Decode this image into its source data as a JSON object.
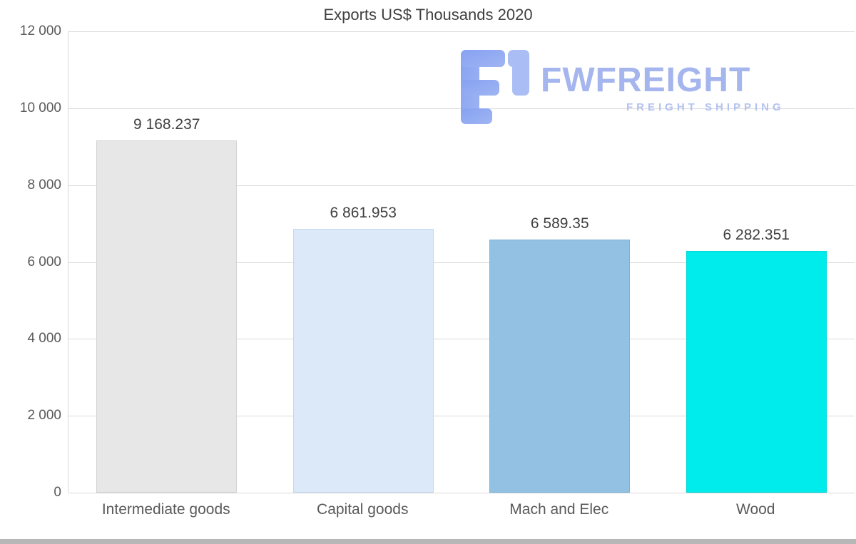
{
  "title": "Exports US$ Thousands 2020",
  "watermark": {
    "name": "FWFREIGHT",
    "tagline": "FREIGHT SHIPPING"
  },
  "chart_data": {
    "type": "bar",
    "title": "Exports US$ Thousands 2020",
    "categories": [
      "Intermediate goods",
      "Capital goods",
      "Mach and Elec",
      "Wood"
    ],
    "values": [
      9168.237,
      6861.953,
      6589.35,
      6282.351
    ],
    "value_labels": [
      "9 168.237",
      "6 861.953",
      "6 589.35",
      "6 282.351"
    ],
    "bar_colors": [
      "#e7e7e7",
      "#dbe9f9",
      "#93c1e3",
      "#00ecec"
    ],
    "bar_border_colors": [
      "#d2d2d2",
      "#c3d9f0",
      "#7eb3da",
      "#00d8d8"
    ],
    "xlabel": "",
    "ylabel": "",
    "ylim": [
      0,
      12000
    ],
    "ytick_step": 2000,
    "ytick_labels": [
      "0",
      "2 000",
      "4 000",
      "6 000",
      "8 000",
      "10 000",
      "12 000"
    ],
    "grid": true,
    "legend": false
  },
  "colors": {
    "grid": "#d9d9d9",
    "title_text": "#3f3f3f",
    "tick_text": "#595959",
    "value_text": "#404040",
    "watermark_text": "#a5b5ed",
    "watermark_tagline": "#b3c2f0",
    "scrollbar": "#b7b7b7"
  }
}
